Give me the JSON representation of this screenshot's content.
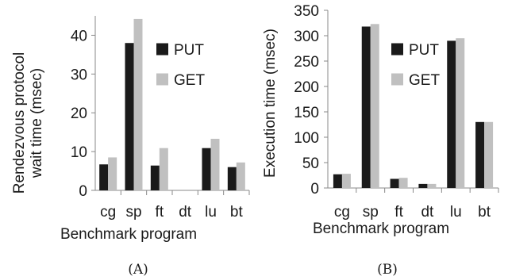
{
  "chart_data": [
    {
      "type": "bar",
      "caption": "(A)",
      "categories": [
        "cg",
        "sp",
        "ft",
        "dt",
        "lu",
        "bt"
      ],
      "series": [
        {
          "name": "PUT",
          "color": "#1a1a1a",
          "values": [
            6.7,
            38,
            6.4,
            0,
            10.9,
            6
          ]
        },
        {
          "name": "GET",
          "color": "#c0c0c0",
          "values": [
            8.5,
            44.2,
            10.9,
            0,
            13.3,
            7.2
          ]
        }
      ],
      "ylabel_line1": "Rendezvous protocol",
      "ylabel_line2": "wait time (msec)",
      "xlabel": "Benchmark program",
      "ylim": [
        0,
        45
      ],
      "yticks": [
        0,
        10,
        20,
        30,
        40
      ],
      "legend_position": "right-upper-middle",
      "grid": false
    },
    {
      "type": "bar",
      "caption": "(B)",
      "categories": [
        "cg",
        "sp",
        "ft",
        "dt",
        "lu",
        "bt"
      ],
      "series": [
        {
          "name": "PUT",
          "color": "#1a1a1a",
          "values": [
            27,
            318,
            18,
            8,
            290,
            130
          ]
        },
        {
          "name": "GET",
          "color": "#c0c0c0",
          "values": [
            28,
            323,
            20,
            8,
            295,
            130
          ]
        }
      ],
      "ylabel": "Execution time (msec)",
      "xlabel": "Benchmark program",
      "ylim": [
        0,
        350
      ],
      "yticks": [
        0,
        50,
        100,
        150,
        200,
        250,
        300,
        350
      ],
      "legend_position": "right-upper-middle",
      "grid": false
    }
  ]
}
